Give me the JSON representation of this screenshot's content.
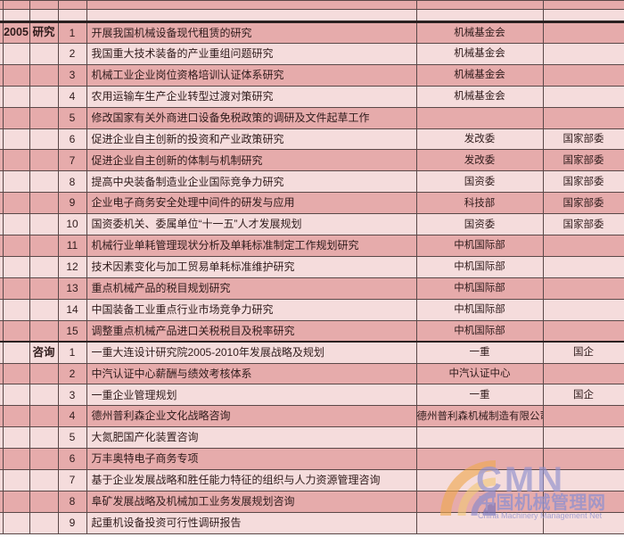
{
  "table": {
    "year_label": "2005",
    "sections": [
      {
        "category": "研究",
        "rows": [
          {
            "num": "1",
            "title": "开展我国机械设备现代租赁的研究",
            "org": "机械基金会",
            "type": ""
          },
          {
            "num": "2",
            "title": "我国重大技术装备的产业重组问题研究",
            "org": "机械基金会",
            "type": ""
          },
          {
            "num": "3",
            "title": "机械工业企业岗位资格培训认证体系研究",
            "org": "机械基金会",
            "type": ""
          },
          {
            "num": "4",
            "title": "农用运输车生产企业转型过渡对策研究",
            "org": "机械基金会",
            "type": ""
          },
          {
            "num": "5",
            "title": "修改国家有关外商进口设备免税政策的调研及文件起草工作",
            "org": "",
            "type": ""
          },
          {
            "num": "6",
            "title": "促进企业自主创新的投资和产业政策研究",
            "org": "发改委",
            "type": "国家部委"
          },
          {
            "num": "7",
            "title": "促进企业自主创新的体制与机制研究",
            "org": "发改委",
            "type": "国家部委"
          },
          {
            "num": "8",
            "title": "提高中央装备制造业企业国际竞争力研究",
            "org": "国资委",
            "type": "国家部委"
          },
          {
            "num": "9",
            "title": "企业电子商务安全处理中间件的研发与应用",
            "org": "科技部",
            "type": "国家部委"
          },
          {
            "num": "10",
            "title": "国资委机关、委属单位“十一五”人才发展规划",
            "org": "国资委",
            "type": "国家部委"
          },
          {
            "num": "11",
            "title": "机械行业单耗管理现状分析及单耗标准制定工作规划研究",
            "org": "中机国际部",
            "type": ""
          },
          {
            "num": "12",
            "title": "技术因素变化与加工贸易单耗标准维护研究",
            "org": "中机国际部",
            "type": ""
          },
          {
            "num": "13",
            "title": "重点机械产品的税目规划研究",
            "org": "中机国际部",
            "type": ""
          },
          {
            "num": "14",
            "title": "中国装备工业重点行业市场竞争力研究",
            "org": "中机国际部",
            "type": ""
          },
          {
            "num": "15",
            "title": "调整重点机械产品进口关税税目及税率研究",
            "org": "中机国际部",
            "type": ""
          }
        ]
      },
      {
        "category": "咨询",
        "rows": [
          {
            "num": "1",
            "title": "一重大连设计研究院2005-2010年发展战略及规划",
            "org": "一重",
            "type": "国企"
          },
          {
            "num": "2",
            "title": "中汽认证中心薪酬与绩效考核体系",
            "org": "中汽认证中心",
            "type": ""
          },
          {
            "num": "3",
            "title": "一重企业管理规划",
            "org": "一重",
            "type": "国企"
          },
          {
            "num": "4",
            "title": "德州普利森企业文化战略咨询",
            "org": "德州普利森机械制造有限公司",
            "type": ""
          },
          {
            "num": "5",
            "title": "大氮肥国产化装置咨询",
            "org": "",
            "type": ""
          },
          {
            "num": "6",
            "title": "万丰奥特电子商务专项",
            "org": "",
            "type": ""
          },
          {
            "num": "7",
            "title": "基于企业发展战略和胜任能力特征的组织与人力资源管理咨询",
            "org": "",
            "type": ""
          },
          {
            "num": "8",
            "title": "阜矿发展战略及机械加工业务发展规划咨询",
            "org": "",
            "type": ""
          },
          {
            "num": "9",
            "title": "起重机设备投资可行性调研报告",
            "org": "",
            "type": ""
          }
        ]
      }
    ]
  },
  "watermark": {
    "abbr": "CMN",
    "name_cn": "中国机械管理网",
    "name_en": "China Machinery Management Net",
    "colors": {
      "arc_orange": "#efa94f",
      "arc_yellow": "#f3c878",
      "arc_purple": "#8888cc",
      "arc_purple2": "#6d6dbb",
      "text_blue": "#9191ce"
    }
  },
  "colors": {
    "row_dark": "#e6abab",
    "row_light": "#f5dcdc",
    "border": "#5a4848",
    "thick_border": "#2a2020",
    "text": "#2f1b1b"
  }
}
